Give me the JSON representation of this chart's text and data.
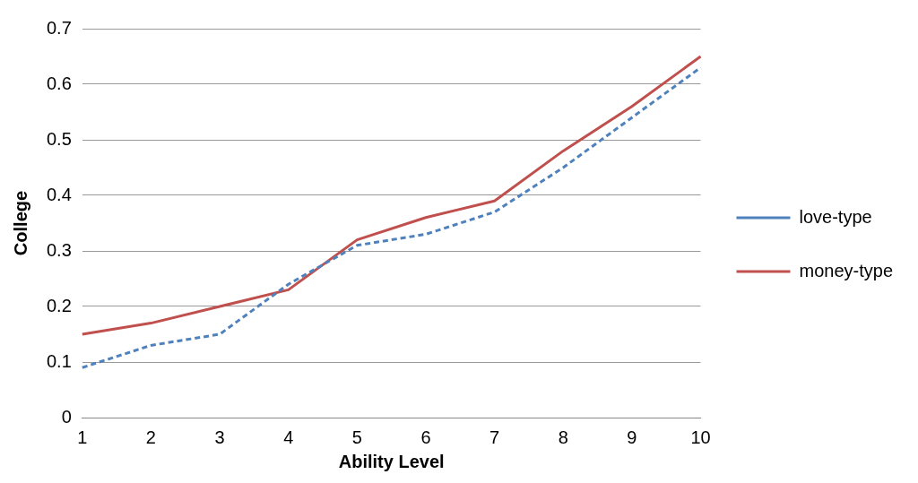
{
  "chart_data": {
    "type": "line",
    "xlabel": "Ability Level",
    "ylabel": "College",
    "categories": [
      "1",
      "2",
      "3",
      "4",
      "5",
      "6",
      "7",
      "8",
      "9",
      "10"
    ],
    "series": [
      {
        "name": "love-type",
        "color": "#4f81bd",
        "line_style": "dashed",
        "values": [
          0.09,
          0.13,
          0.15,
          0.24,
          0.31,
          0.33,
          0.37,
          0.45,
          0.54,
          0.63
        ]
      },
      {
        "name": "money-type",
        "color": "#c0504d",
        "line_style": "solid",
        "values": [
          0.15,
          0.17,
          0.2,
          0.23,
          0.32,
          0.36,
          0.39,
          0.48,
          0.56,
          0.65
        ]
      }
    ],
    "ylim": [
      0,
      0.7
    ],
    "yticks": [
      0,
      0.1,
      0.2,
      0.3,
      0.4,
      0.5,
      0.6,
      0.7
    ],
    "grid": "y",
    "legend": "right",
    "marker": "none"
  }
}
